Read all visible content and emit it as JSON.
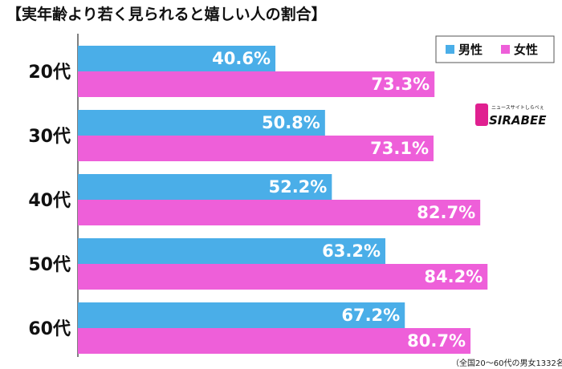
{
  "chart_data": {
    "type": "bar",
    "orientation": "horizontal",
    "title": "【実年齢より若く見られると嬉しい人の割合】",
    "categories": [
      "20代",
      "30代",
      "40代",
      "50代",
      "60代"
    ],
    "series": [
      {
        "name": "男性",
        "color": "#4aaee8",
        "values": [
          40.6,
          50.8,
          52.2,
          63.2,
          67.2
        ]
      },
      {
        "name": "女性",
        "color": "#ee5fd9",
        "values": [
          73.3,
          73.1,
          82.7,
          84.2,
          80.7
        ]
      }
    ],
    "value_labels": {
      "男性": [
        "40.6%",
        "50.8%",
        "52.2%",
        "63.2%",
        "67.2%"
      ],
      "女性": [
        "73.3%",
        "73.1%",
        "82.7%",
        "84.2%",
        "80.7%"
      ]
    },
    "xlim": [
      0,
      100
    ],
    "legend_position": "top-right",
    "note": "（全国20〜60代の男女1332名に調査）"
  },
  "logo": {
    "text": "SIRABEE",
    "tagline": "ニュースサイトしらべぇ"
  }
}
